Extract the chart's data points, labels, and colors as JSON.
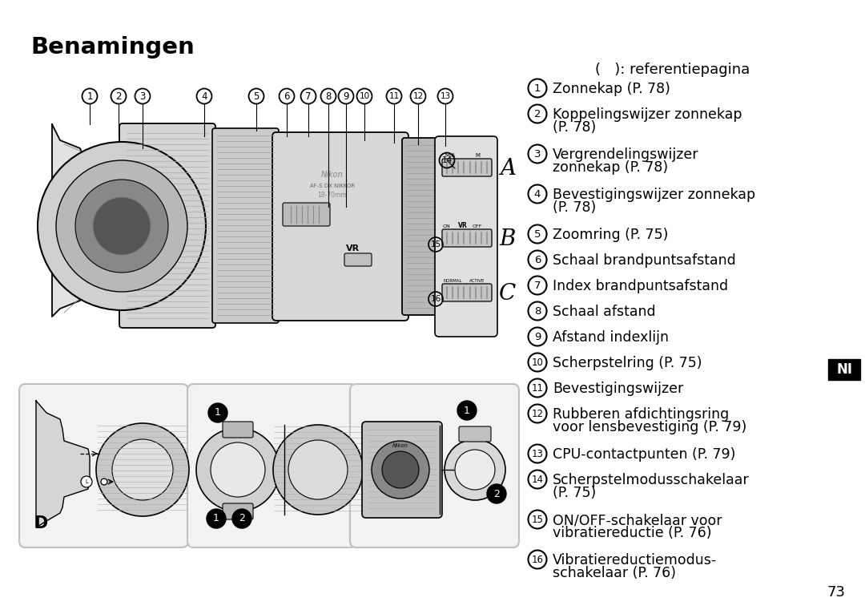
{
  "title": "Benamingen",
  "subtitle": "(   ): referentiepagina",
  "page_number": "73",
  "ni_label": "NI",
  "background_color": "#ffffff",
  "text_color": "#000000",
  "items": [
    {
      "num": "1",
      "text": "Zonnekap (P. 78)"
    },
    {
      "num": "2",
      "text": "Koppelingswijzer zonnekap\n(P. 78)"
    },
    {
      "num": "3",
      "text": "Vergrendelingswijzer\nzonnekap (P. 78)"
    },
    {
      "num": "4",
      "text": "Bevestigingswijzer zonnekap\n(P. 78)"
    },
    {
      "num": "5",
      "text": "Zoomring (P. 75)"
    },
    {
      "num": "6",
      "text": "Schaal brandpuntsafstand"
    },
    {
      "num": "7",
      "text": "Index brandpuntsafstand"
    },
    {
      "num": "8",
      "text": "Schaal afstand"
    },
    {
      "num": "9",
      "text": "Afstand indexlijn"
    },
    {
      "num": "10",
      "text": "Scherpstelring (P. 75)"
    },
    {
      "num": "11",
      "text": "Bevestigingswijzer"
    },
    {
      "num": "12",
      "text": "Rubberen afdichtingsring\nvoor lensbevestiging (P. 79)"
    },
    {
      "num": "13",
      "text": "CPU-contactpunten (P. 79)"
    },
    {
      "num": "14",
      "text": "Scherpstelmodusschakelaar\n(P. 75)"
    },
    {
      "num": "15",
      "text": "ON/OFF-schakelaar voor\nvibratiereductie (P. 76)"
    },
    {
      "num": "16",
      "text": "Vibratiereductiemodus-\nschakelaar (P. 76)"
    }
  ]
}
